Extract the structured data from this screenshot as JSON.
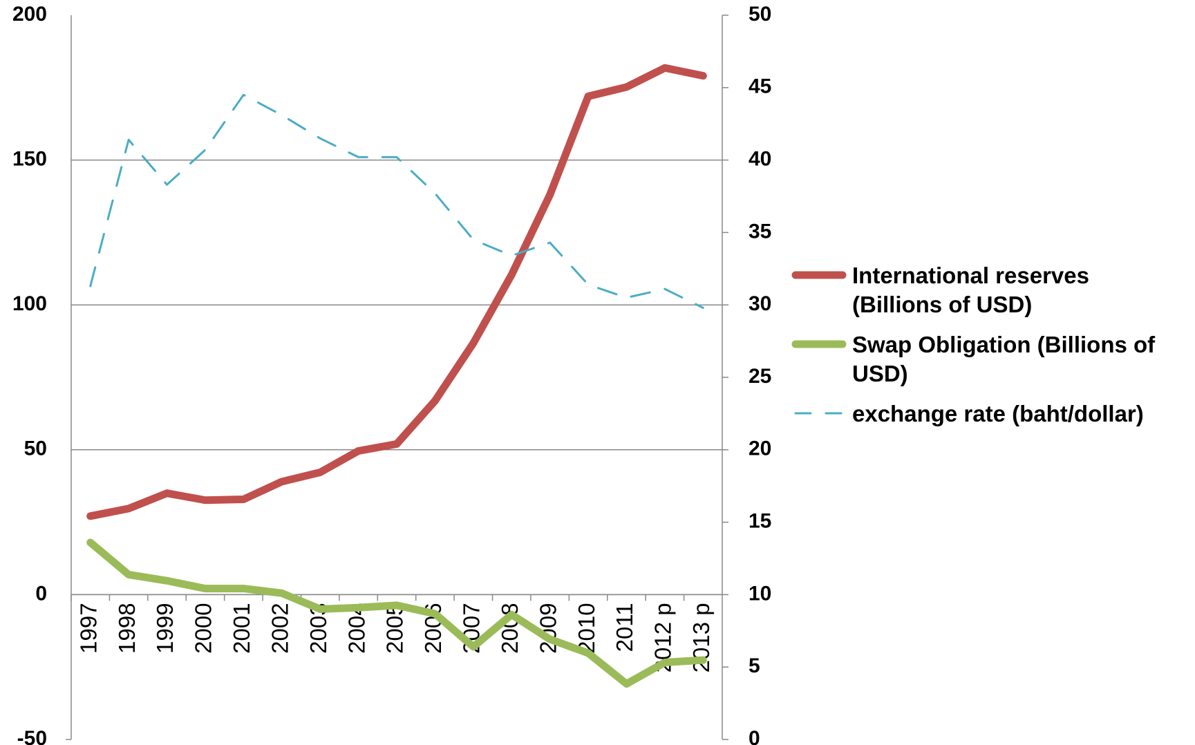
{
  "chart_data": {
    "type": "line",
    "categories": [
      "1997",
      "1998",
      "1999",
      "2000",
      "2001",
      "2002",
      "2003",
      "2004",
      "2005",
      "2006",
      "2007",
      "2008",
      "2009",
      "2010",
      "2011",
      "2012 p",
      "2013 p"
    ],
    "series": [
      {
        "name": "International reserves (Billions of USD)",
        "color": "#c0504d",
        "axis": "y",
        "values": [
          27.1,
          29.7,
          35,
          32.6,
          32.9,
          39,
          42.2,
          49.6,
          52,
          66.9,
          86.8,
          110.4,
          138,
          172,
          175.2,
          181.8,
          179.1
        ]
      },
      {
        "name": "Swap Obligation (Billions of USD)",
        "color": "#9bbb59",
        "axis": "y",
        "values": [
          18,
          6.9,
          4.8,
          2.1,
          2.1,
          0.5,
          -5,
          -4.5,
          -3.7,
          -6.6,
          -18,
          -6.9,
          -15.4,
          -20.2,
          -30.8,
          -23.4,
          -22.6
        ]
      },
      {
        "name": "exchange rate (baht/dollar)",
        "color": "#4bacc6",
        "axis": "y2",
        "dashed": true,
        "values": [
          31.3,
          41.4,
          38.3,
          40.7,
          44.5,
          43.1,
          41.5,
          40.2,
          40.2,
          37.7,
          34.5,
          33.4,
          34.3,
          31.4,
          30.5,
          31.1,
          29.8
        ]
      }
    ],
    "ylim": [
      -50,
      200
    ],
    "yticks": [
      -50,
      0,
      50,
      100,
      150,
      200
    ],
    "y2lim": [
      0,
      50
    ],
    "y2ticks": [
      0,
      5,
      10,
      15,
      20,
      25,
      30,
      35,
      40,
      45,
      50
    ],
    "grid": true,
    "legend": "right"
  }
}
